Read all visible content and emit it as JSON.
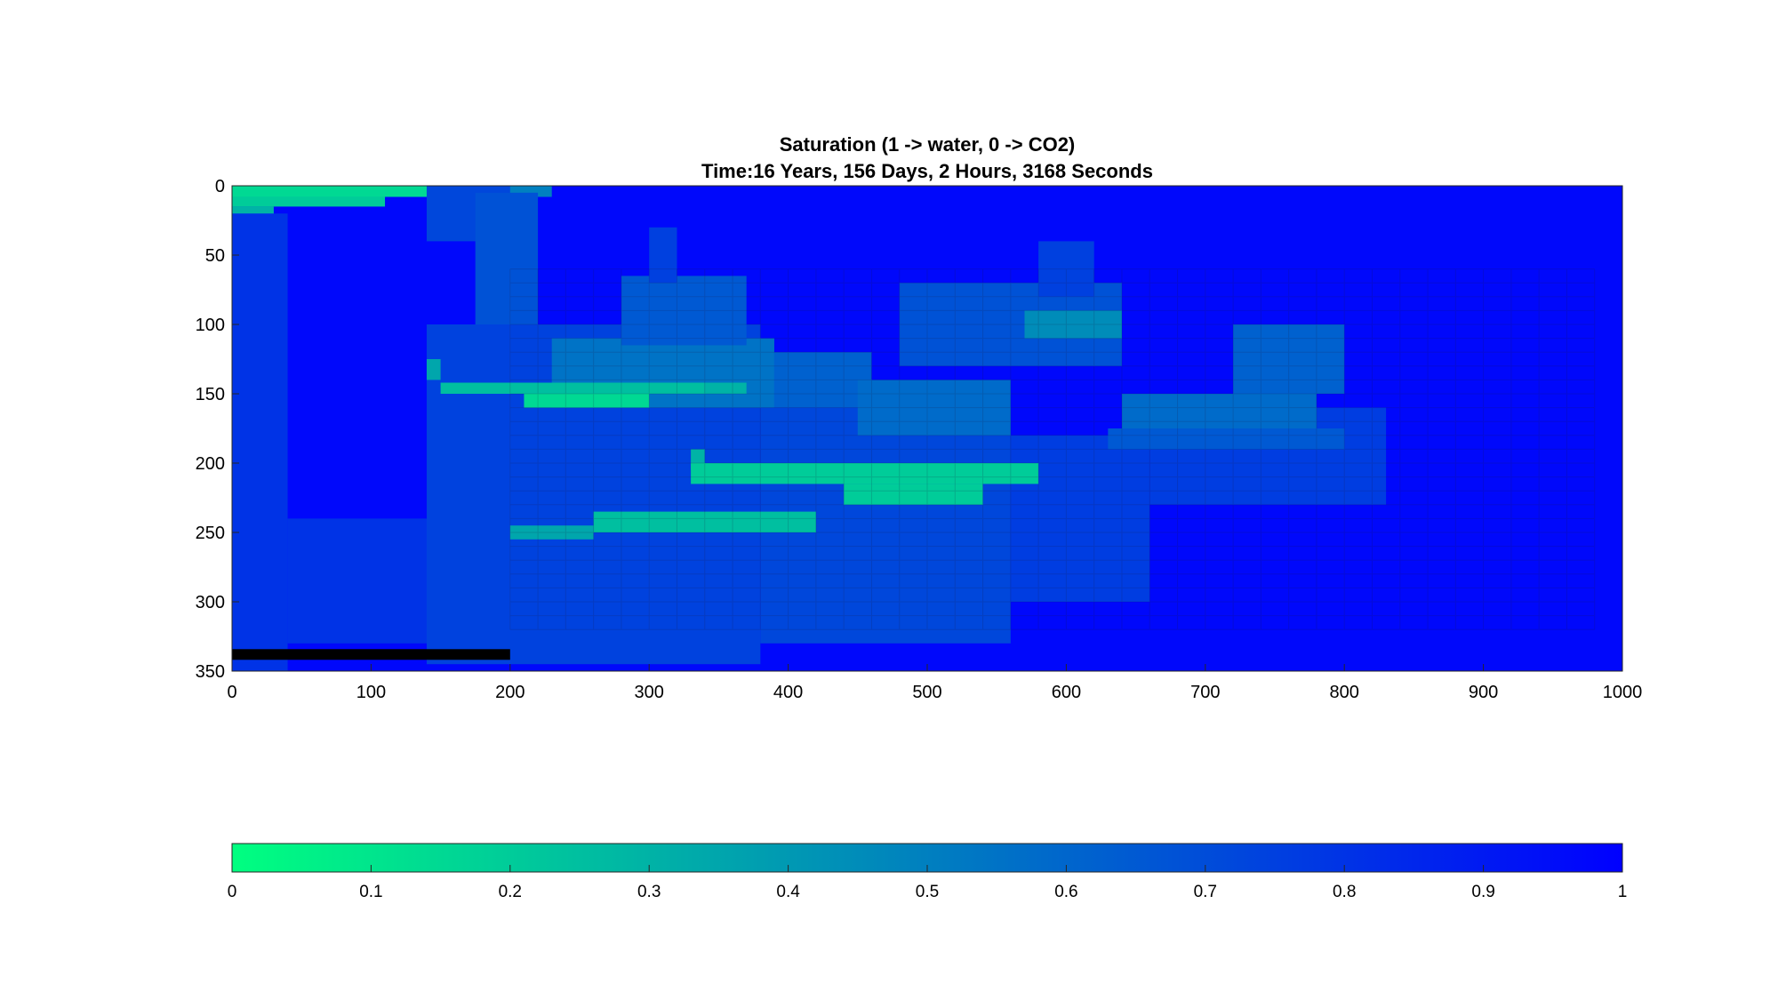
{
  "chart_data": {
    "type": "heatmap",
    "title": "Saturation (1 -> water, 0 -> CO2)",
    "subtitle": "Time:16 Years, 156 Days, 2 Hours, 3168 Seconds",
    "xlabel": "",
    "ylabel": "",
    "xlim": [
      0,
      1000
    ],
    "ylim": [
      0,
      350
    ],
    "y_reversed": true,
    "x_ticks": [
      "0",
      "100",
      "200",
      "300",
      "400",
      "500",
      "600",
      "700",
      "800",
      "900",
      "1000"
    ],
    "y_ticks": [
      "0",
      "50",
      "100",
      "150",
      "200",
      "250",
      "300",
      "350"
    ],
    "grid": false,
    "colormap": {
      "name": "winter",
      "low_color": "#00ff80",
      "high_color": "#0000ff",
      "clim": [
        0,
        1
      ],
      "ticks": [
        "0",
        "0.1",
        "0.2",
        "0.3",
        "0.4",
        "0.5",
        "0.6",
        "0.7",
        "0.8",
        "0.9",
        "1"
      ],
      "location": "bottom"
    },
    "background_value": 0.97,
    "well_bar": {
      "x": [
        0,
        200
      ],
      "y": 338,
      "color": "#000000"
    },
    "regions": [
      {
        "x": [
          0,
          170
        ],
        "y": [
          0,
          8
        ],
        "value": 0.15
      },
      {
        "x": [
          0,
          110
        ],
        "y": [
          8,
          15
        ],
        "value": 0.2
      },
      {
        "x": [
          170,
          230
        ],
        "y": [
          0,
          8
        ],
        "value": 0.5
      },
      {
        "x": [
          0,
          30
        ],
        "y": [
          15,
          22
        ],
        "value": 0.3
      },
      {
        "x": [
          0,
          40
        ],
        "y": [
          20,
          350
        ],
        "value": 0.8
      },
      {
        "x": [
          40,
          170
        ],
        "y": [
          240,
          330
        ],
        "value": 0.8
      },
      {
        "x": [
          140,
          200
        ],
        "y": [
          0,
          40
        ],
        "value": 0.72
      },
      {
        "x": [
          175,
          220
        ],
        "y": [
          5,
          110
        ],
        "value": 0.68
      },
      {
        "x": [
          140,
          380
        ],
        "y": [
          100,
          345
        ],
        "value": 0.74
      },
      {
        "x": [
          380,
          560
        ],
        "y": [
          160,
          330
        ],
        "value": 0.72
      },
      {
        "x": [
          560,
          660
        ],
        "y": [
          180,
          300
        ],
        "value": 0.76
      },
      {
        "x": [
          660,
          830
        ],
        "y": [
          160,
          230
        ],
        "value": 0.76
      },
      {
        "x": [
          230,
          390
        ],
        "y": [
          110,
          160
        ],
        "value": 0.55
      },
      {
        "x": [
          280,
          370
        ],
        "y": [
          65,
          115
        ],
        "value": 0.65
      },
      {
        "x": [
          300,
          320
        ],
        "y": [
          30,
          70
        ],
        "value": 0.75
      },
      {
        "x": [
          390,
          460
        ],
        "y": [
          120,
          160
        ],
        "value": 0.62
      },
      {
        "x": [
          480,
          640
        ],
        "y": [
          70,
          130
        ],
        "value": 0.68
      },
      {
        "x": [
          570,
          640
        ],
        "y": [
          90,
          110
        ],
        "value": 0.45
      },
      {
        "x": [
          580,
          620
        ],
        "y": [
          40,
          80
        ],
        "value": 0.75
      },
      {
        "x": [
          450,
          560
        ],
        "y": [
          140,
          180
        ],
        "value": 0.58
      },
      {
        "x": [
          720,
          800
        ],
        "y": [
          100,
          150
        ],
        "value": 0.62
      },
      {
        "x": [
          640,
          780
        ],
        "y": [
          150,
          175
        ],
        "value": 0.58
      },
      {
        "x": [
          630,
          800
        ],
        "y": [
          175,
          190
        ],
        "value": 0.65
      },
      {
        "x": [
          140,
          150
        ],
        "y": [
          125,
          140
        ],
        "value": 0.35
      },
      {
        "x": [
          150,
          340
        ],
        "y": [
          142,
          150
        ],
        "value": 0.25
      },
      {
        "x": [
          210,
          300
        ],
        "y": [
          150,
          160
        ],
        "value": 0.15
      },
      {
        "x": [
          340,
          370
        ],
        "y": [
          142,
          150
        ],
        "value": 0.3
      },
      {
        "x": [
          330,
          340
        ],
        "y": [
          190,
          205
        ],
        "value": 0.3
      },
      {
        "x": [
          330,
          580
        ],
        "y": [
          200,
          215
        ],
        "value": 0.2
      },
      {
        "x": [
          440,
          540
        ],
        "y": [
          215,
          230
        ],
        "value": 0.2
      },
      {
        "x": [
          260,
          420
        ],
        "y": [
          235,
          250
        ],
        "value": 0.25
      },
      {
        "x": [
          200,
          260
        ],
        "y": [
          245,
          255
        ],
        "value": 0.35
      }
    ]
  }
}
